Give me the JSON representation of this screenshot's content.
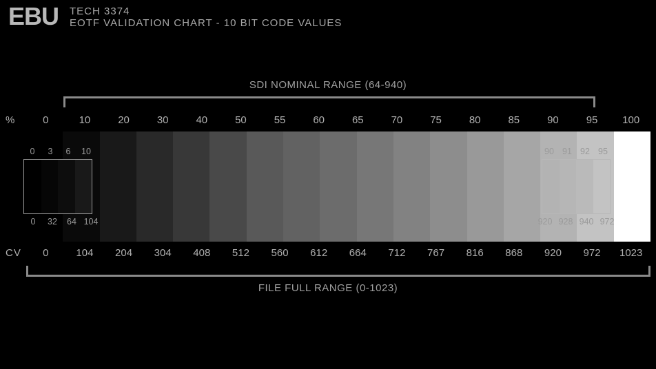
{
  "header": {
    "logo": "EBU",
    "tech": "TECH 3374",
    "subtitle": "EOTF VALIDATION CHART - 10 BIT CODE VALUES"
  },
  "sdi_range": {
    "label": "SDI NOMINAL RANGE (64-940)",
    "start_pct": 6.0,
    "end_pct": 91.2
  },
  "full_range": {
    "label": "FILE FULL RANGE (0-1023)",
    "start_pct": 0,
    "end_pct": 100
  },
  "pct_row": {
    "prefix": "%",
    "values": [
      "0",
      "10",
      "20",
      "30",
      "40",
      "50",
      "55",
      "60",
      "65",
      "70",
      "75",
      "80",
      "85",
      "90",
      "95",
      "100"
    ]
  },
  "cv_row": {
    "prefix": "CV",
    "values": [
      "0",
      "104",
      "204",
      "304",
      "408",
      "512",
      "560",
      "612",
      "664",
      "712",
      "767",
      "816",
      "868",
      "920",
      "972",
      "1023"
    ]
  },
  "ramp": {
    "step_count": 17,
    "colors": [
      "#000000",
      "#0a0a0a",
      "#191919",
      "#292929",
      "#383838",
      "#494949",
      "#595959",
      "#626262",
      "#6c6c6c",
      "#777777",
      "#828282",
      "#8d8d8d",
      "#999999",
      "#a6a6a6",
      "#b3b3b3",
      "#c3c3c3",
      "#ffffff"
    ]
  },
  "sub_left": {
    "top": [
      "0",
      "3",
      "6",
      "10"
    ],
    "bottom": [
      "0",
      "32",
      "64",
      "104"
    ],
    "colors": [
      "#000000",
      "#060606",
      "#0d0d0d",
      "#191919"
    ]
  },
  "sub_right": {
    "top": [
      "90",
      "91",
      "92",
      "95"
    ],
    "bottom": [
      "920",
      "928",
      "940",
      "972"
    ],
    "colors": [
      "#b3b3b3",
      "#b6b6b6",
      "#bababa",
      "#c3c3c3"
    ]
  },
  "style": {
    "bg": "#000000",
    "text": "#a8a8a8",
    "bracket": "#8a8a8a"
  }
}
